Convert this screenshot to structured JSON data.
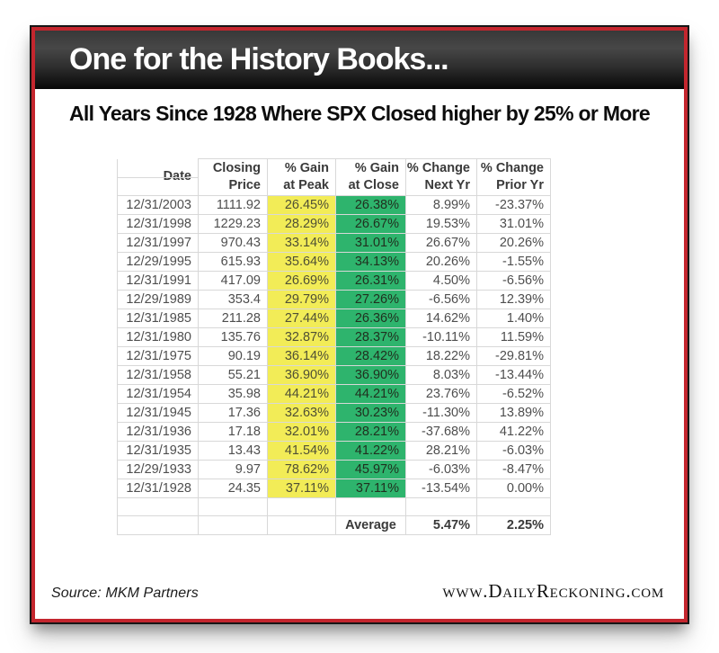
{
  "banner": {
    "title": "One for the History Books..."
  },
  "subtitle": "All Years Since 1928 Where SPX Closed higher by 25% or More",
  "chart_data": {
    "type": "table",
    "title": "All Years Since 1928 Where SPX Closed higher by 25% or More",
    "columns": [
      "Date",
      "Closing Price",
      "% Gain at Peak",
      "% Gain at Close",
      "% Change Next Yr",
      "% Change Prior Yr"
    ],
    "header_lines": [
      [
        "",
        "Date"
      ],
      [
        "Closing",
        "Price"
      ],
      [
        "% Gain",
        "at Peak"
      ],
      [
        "% Gain",
        "at Close"
      ],
      [
        "% Change",
        "Next Yr"
      ],
      [
        "% Change",
        "Prior Yr"
      ]
    ],
    "rows": [
      [
        "12/31/2003",
        "1111.92",
        "26.45%",
        "26.38%",
        "8.99%",
        "-23.37%"
      ],
      [
        "12/31/1998",
        "1229.23",
        "28.29%",
        "26.67%",
        "19.53%",
        "31.01%"
      ],
      [
        "12/31/1997",
        "970.43",
        "33.14%",
        "31.01%",
        "26.67%",
        "20.26%"
      ],
      [
        "12/29/1995",
        "615.93",
        "35.64%",
        "34.13%",
        "20.26%",
        "-1.55%"
      ],
      [
        "12/31/1991",
        "417.09",
        "26.69%",
        "26.31%",
        "4.50%",
        "-6.56%"
      ],
      [
        "12/29/1989",
        "353.4",
        "29.79%",
        "27.26%",
        "-6.56%",
        "12.39%"
      ],
      [
        "12/31/1985",
        "211.28",
        "27.44%",
        "26.36%",
        "14.62%",
        "1.40%"
      ],
      [
        "12/31/1980",
        "135.76",
        "32.87%",
        "28.37%",
        "-10.11%",
        "11.59%"
      ],
      [
        "12/31/1975",
        "90.19",
        "36.14%",
        "28.42%",
        "18.22%",
        "-29.81%"
      ],
      [
        "12/31/1958",
        "55.21",
        "36.90%",
        "36.90%",
        "8.03%",
        "-13.44%"
      ],
      [
        "12/31/1954",
        "35.98",
        "44.21%",
        "44.21%",
        "23.76%",
        "-6.52%"
      ],
      [
        "12/31/1945",
        "17.36",
        "32.63%",
        "30.23%",
        "-11.30%",
        "13.89%"
      ],
      [
        "12/31/1936",
        "17.18",
        "32.01%",
        "28.21%",
        "-37.68%",
        "41.22%"
      ],
      [
        "12/31/1935",
        "13.43",
        "41.54%",
        "41.22%",
        "28.21%",
        "-6.03%"
      ],
      [
        "12/29/1933",
        "9.97",
        "78.62%",
        "45.97%",
        "-6.03%",
        "-8.47%"
      ],
      [
        "12/31/1928",
        "24.35",
        "37.11%",
        "37.11%",
        "-13.54%",
        "0.00%"
      ]
    ],
    "average_row": {
      "label": "Average",
      "next_yr": "5.47%",
      "prior_yr": "2.25%"
    },
    "highlights": {
      "peak_column_color": "#f2ec57",
      "close_column_color": "#2eb46d"
    },
    "layout_hints": {
      "gridlines": "on",
      "gridline_color": "#d8d8d8"
    }
  },
  "footer": {
    "source": "Source: MKM Partners",
    "site": "www.DailyReckoning.com"
  },
  "colors": {
    "border_red": "#c4262e",
    "border_outline": "#161616",
    "banner_gradient_top": "#383838",
    "banner_gradient_bottom": "#070707",
    "banner_text": "#ffffff",
    "data_text": "#4e4e4e"
  }
}
